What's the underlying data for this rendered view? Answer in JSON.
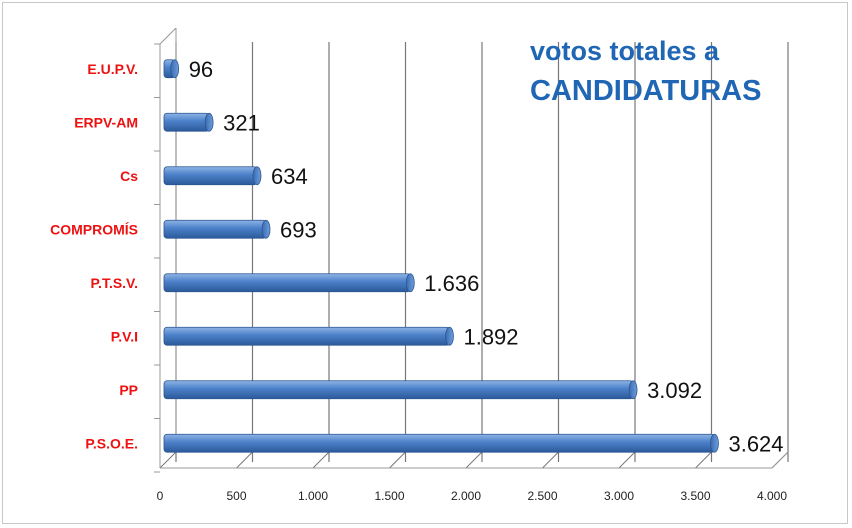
{
  "chart_data": {
    "type": "bar",
    "orientation": "horizontal",
    "title_lines": [
      "votos totales a",
      "CANDIDATURAS"
    ],
    "categories": [
      "E.U.P.V.",
      "ERPV-AM",
      "Cs",
      "COMPROMÍS",
      "P.T.S.V.",
      "P.V.I",
      "PP",
      "P.S.O.E."
    ],
    "values": [
      96,
      321,
      634,
      693,
      1636,
      1892,
      3092,
      3624
    ],
    "value_labels": [
      "96",
      "321",
      "634",
      "693",
      "1.636",
      "1.892",
      "3.092",
      "3.624"
    ],
    "xlim": [
      0,
      4000
    ],
    "x_ticks": [
      0,
      500,
      1000,
      1500,
      2000,
      2500,
      3000,
      3500,
      4000
    ],
    "x_tick_labels": [
      "0",
      "500",
      "1.000",
      "1.500",
      "2.000",
      "2.500",
      "3.000",
      "3.500",
      "4.000"
    ],
    "xlabel": "",
    "ylabel": "",
    "grid": true,
    "legend": "none",
    "colors": {
      "bar": "#4a7fc8",
      "bar_dark": "#2c5a9a",
      "bar_light": "#8fb4e6",
      "category_label": "#ee1111",
      "title": "#1f66b5",
      "gridline": "#777777"
    }
  }
}
